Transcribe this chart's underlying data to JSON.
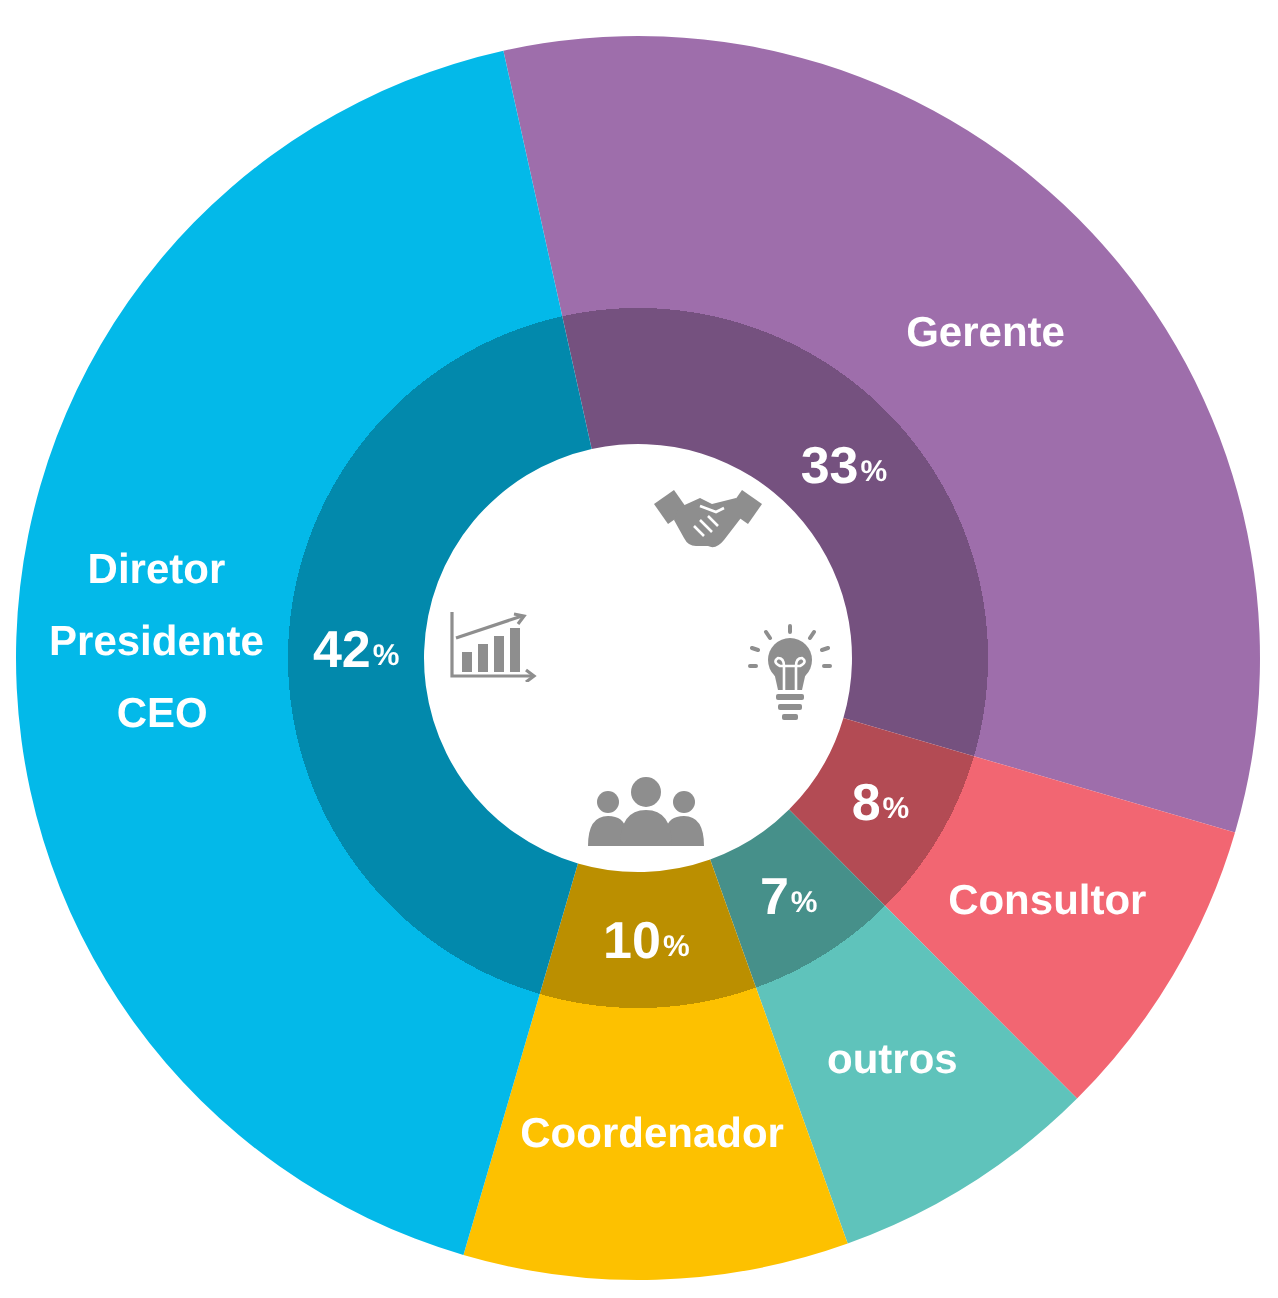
{
  "chart_data": {
    "type": "donut",
    "categories": [
      "Gerente",
      "Consultor",
      "outros",
      "Coordenador",
      "Diretor Presidente CEO"
    ],
    "values": [
      33,
      8,
      7,
      10,
      42
    ],
    "value_labels": [
      "33%",
      "8%",
      "7%",
      "10%",
      "42%"
    ],
    "colors": [
      "#9e6eab",
      "#f26672",
      "#5fc3bb",
      "#fdc100",
      "#03b9e9"
    ]
  }
}
